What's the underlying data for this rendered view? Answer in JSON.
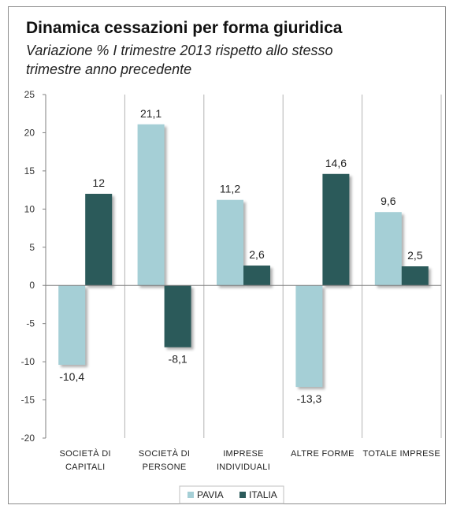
{
  "header": {
    "title": "Dinamica cessazioni per forma giuridica",
    "subtitle_line1": "Variazione % I trimestre 2013 rispetto allo stesso",
    "subtitle_line2": "trimestre anno precedente"
  },
  "colors": {
    "pavia": "#a5cfd6",
    "italia": "#2b5a5a"
  },
  "chart_data": {
    "type": "bar",
    "categories": [
      [
        "SOCIETÀ DI",
        "CAPITALI"
      ],
      [
        "SOCIETÀ DI",
        "PERSONE"
      ],
      [
        "IMPRESE",
        "INDIVIDUALI"
      ],
      [
        "ALTRE FORME"
      ],
      [
        "TOTALE IMPRESE"
      ]
    ],
    "series": [
      {
        "name": "PAVIA",
        "values": [
          -10.4,
          21.1,
          11.2,
          -13.3,
          9.6
        ],
        "labels": [
          "-10,4",
          "21,1",
          "11,2",
          "-13,3",
          "9,6"
        ]
      },
      {
        "name": "ITALIA",
        "values": [
          12,
          -8.1,
          2.6,
          14.6,
          2.5
        ],
        "labels": [
          "12",
          "-8,1",
          "2,6",
          "14,6",
          "2,5"
        ]
      }
    ],
    "ylim": [
      -20,
      25
    ],
    "yticks": [
      25,
      20,
      15,
      10,
      5,
      0,
      -5,
      -10,
      -15,
      -20
    ],
    "legend": "bottom",
    "grid": false
  }
}
